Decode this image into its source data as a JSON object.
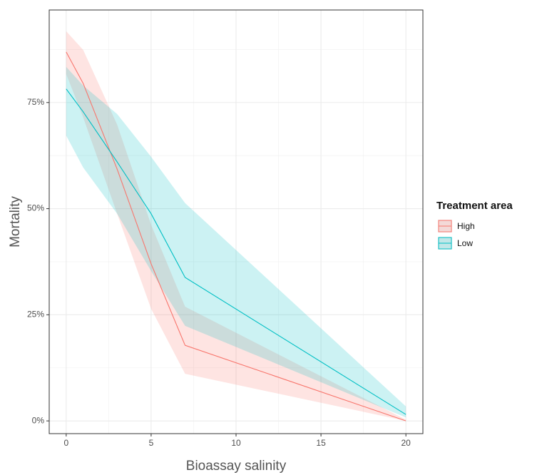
{
  "chart_data": {
    "type": "line",
    "x_label": "Bioassay salinity",
    "y_label": "Mortality",
    "legend_title": "Treatment area",
    "x": [
      0,
      1,
      3,
      5,
      7,
      20
    ],
    "series": [
      {
        "name": "High",
        "color": "#F8766D",
        "values": [
          86.9,
          79.5,
          59.3,
          37.0,
          17.8,
          0.0
        ],
        "lower": [
          81.7,
          71.5,
          48.8,
          26.4,
          11.1,
          0.0
        ],
        "upper": [
          91.8,
          87.4,
          69.8,
          46.2,
          26.9,
          0.3
        ]
      },
      {
        "name": "Low",
        "color": "#00BFC4",
        "values": [
          78.2,
          72.8,
          61.0,
          48.8,
          33.8,
          1.5
        ],
        "lower": [
          67.2,
          59.7,
          48.8,
          35.3,
          22.4,
          0.8
        ],
        "upper": [
          83.4,
          79.0,
          72.3,
          62.2,
          51.3,
          3.4
        ]
      }
    ],
    "xlim": [
      -1,
      21
    ],
    "xticks": [
      0,
      5,
      10,
      15,
      20
    ],
    "ylim": [
      -3,
      96.8
    ],
    "yticks": [
      {
        "value": 0,
        "label": "0%"
      },
      {
        "value": 25,
        "label": "25%"
      },
      {
        "value": 50,
        "label": "50%"
      },
      {
        "value": 75,
        "label": "75%"
      }
    ],
    "grid": true,
    "legend_position": "right"
  }
}
